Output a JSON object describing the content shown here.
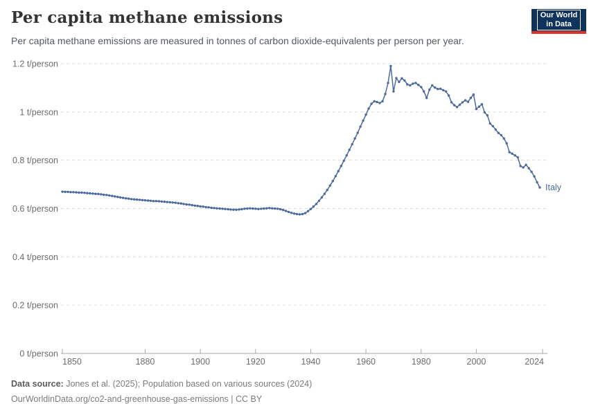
{
  "header": {
    "title": "Per capita methane emissions",
    "subtitle": "Per capita methane emissions are measured in tonnes of carbon dioxide-equivalents per person per year.",
    "logo_line1": "Our World",
    "logo_line2": "in Data"
  },
  "footer": {
    "source_label": "Data source:",
    "source_text": "Jones et al. (2025); Population based on various sources (2024)",
    "link_line": "OurWorldinData.org/co2-and-greenhouse-gas-emissions | CC BY"
  },
  "colors": {
    "series": "#4C6A9C",
    "grid": "#dcdcdc",
    "axis": "#a6a6a6",
    "tick_label": "#6c6c6c",
    "logo_navy": "#10335e",
    "logo_red": "#dc3428"
  },
  "chart_data": {
    "type": "line",
    "title": "Per capita methane emissions",
    "unit": "t/person",
    "grid": "horizontal dashed",
    "legend_position": "end-of-line label",
    "xlim": [
      1850,
      2024
    ],
    "ylim": [
      0,
      1.2
    ],
    "xticks": [
      1850,
      1880,
      1900,
      1920,
      1940,
      1960,
      1980,
      2000,
      2024
    ],
    "yticks": [
      0,
      0.2,
      0.4,
      0.6,
      0.8,
      1,
      1.2
    ],
    "ytick_labels": [
      "0 t/person",
      "0.2 t/person",
      "0.4 t/person",
      "0.6 t/person",
      "0.8 t/person",
      "1 t/person",
      "1.2 t/person"
    ],
    "x_start": 1850,
    "x_step": 1,
    "series": [
      {
        "name": "Italy",
        "color": "#4C6A9C",
        "values": [
          0.67,
          0.669,
          0.669,
          0.668,
          0.668,
          0.667,
          0.666,
          0.666,
          0.665,
          0.664,
          0.663,
          0.662,
          0.661,
          0.66,
          0.659,
          0.657,
          0.656,
          0.654,
          0.652,
          0.65,
          0.648,
          0.646,
          0.644,
          0.642,
          0.641,
          0.639,
          0.638,
          0.637,
          0.636,
          0.635,
          0.634,
          0.633,
          0.632,
          0.631,
          0.631,
          0.63,
          0.629,
          0.628,
          0.627,
          0.626,
          0.625,
          0.624,
          0.622,
          0.621,
          0.619,
          0.617,
          0.616,
          0.614,
          0.612,
          0.611,
          0.609,
          0.608,
          0.606,
          0.605,
          0.603,
          0.602,
          0.601,
          0.6,
          0.599,
          0.598,
          0.597,
          0.596,
          0.595,
          0.595,
          0.596,
          0.597,
          0.599,
          0.6,
          0.601,
          0.6,
          0.599,
          0.598,
          0.599,
          0.6,
          0.601,
          0.602,
          0.601,
          0.6,
          0.599,
          0.597,
          0.594,
          0.59,
          0.586,
          0.582,
          0.579,
          0.577,
          0.576,
          0.577,
          0.581,
          0.589,
          0.598,
          0.608,
          0.619,
          0.632,
          0.646,
          0.661,
          0.677,
          0.695,
          0.714,
          0.734,
          0.755,
          0.776,
          0.798,
          0.82,
          0.843,
          0.866,
          0.89,
          0.914,
          0.939,
          0.964,
          0.989,
          1.014,
          1.034,
          1.044,
          1.041,
          1.037,
          1.044,
          1.074,
          1.12,
          1.19,
          1.085,
          1.14,
          1.124,
          1.139,
          1.13,
          1.114,
          1.11,
          1.117,
          1.12,
          1.112,
          1.103,
          1.085,
          1.058,
          1.092,
          1.11,
          1.101,
          1.095,
          1.096,
          1.09,
          1.085,
          1.068,
          1.04,
          1.028,
          1.02,
          1.03,
          1.04,
          1.048,
          1.042,
          1.058,
          1.072,
          1.012,
          1.022,
          1.032,
          0.998,
          0.986,
          0.952,
          0.941,
          0.927,
          0.913,
          0.904,
          0.89,
          0.87,
          0.833,
          0.827,
          0.82,
          0.812,
          0.776,
          0.77,
          0.781,
          0.767,
          0.752,
          0.733,
          0.709,
          0.687
        ]
      }
    ]
  }
}
